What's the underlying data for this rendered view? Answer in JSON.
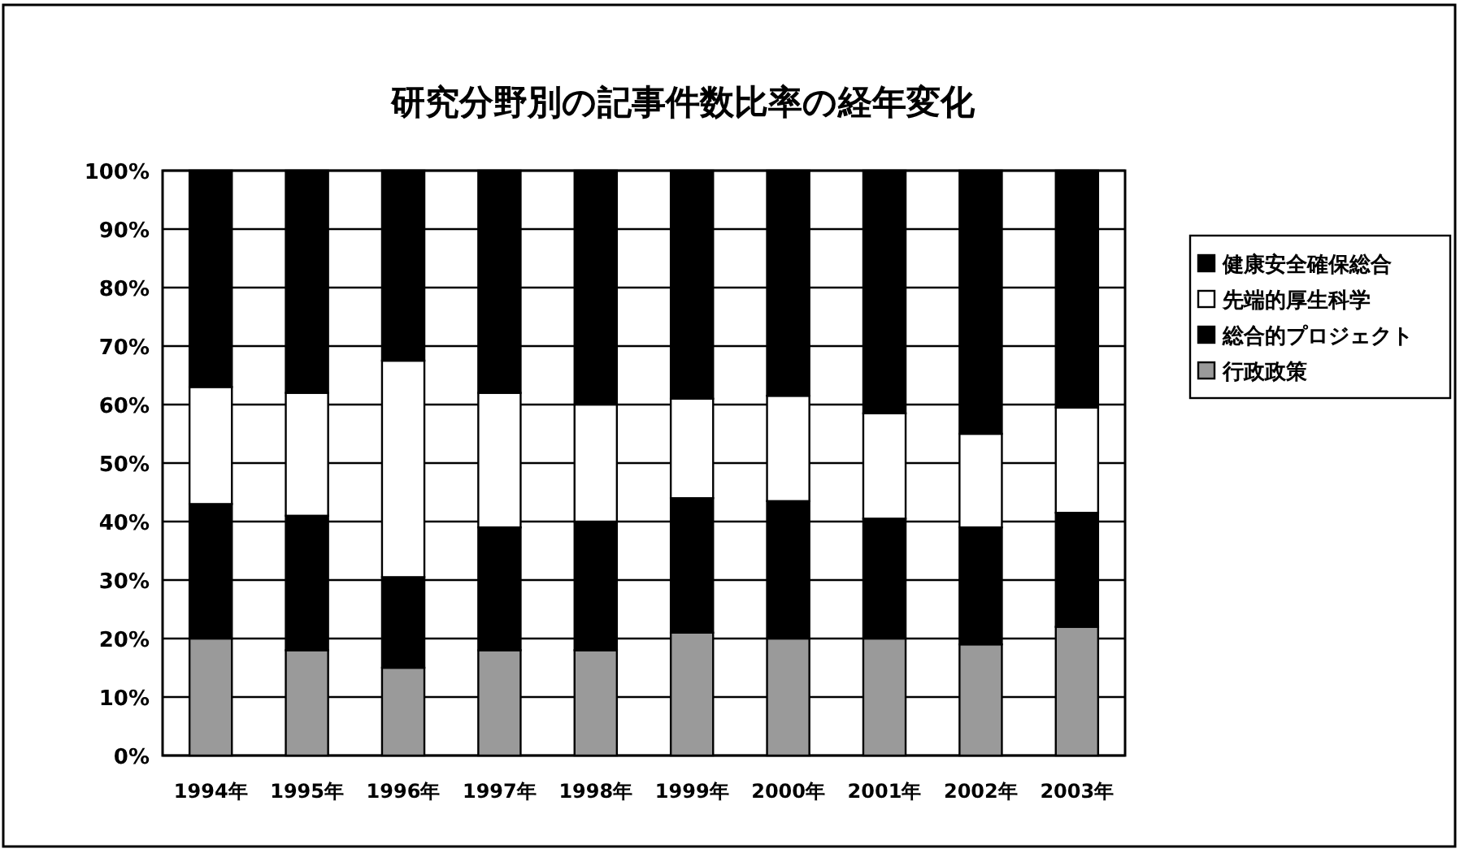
{
  "chart_data": {
    "type": "bar",
    "title": "研究分野別の記事件数比率の経年変化",
    "stacked": true,
    "grid": "y",
    "legend": "right",
    "categories": [
      "1994年",
      "1995年",
      "1996年",
      "1997年",
      "1998年",
      "1999年",
      "2000年",
      "2001年",
      "2002年",
      "2003年"
    ],
    "ylim": [
      0,
      100
    ],
    "yticks": [
      {
        "value": 0,
        "label": "0%"
      },
      {
        "value": 10,
        "label": "10%"
      },
      {
        "value": 20,
        "label": "20%"
      },
      {
        "value": 30,
        "label": "30%"
      },
      {
        "value": 40,
        "label": "40%"
      },
      {
        "value": 50,
        "label": "50%"
      },
      {
        "value": 60,
        "label": "60%"
      },
      {
        "value": 70,
        "label": "70%"
      },
      {
        "value": 80,
        "label": "80%"
      },
      {
        "value": 90,
        "label": "90%"
      },
      {
        "value": 100,
        "label": "100%"
      }
    ],
    "series": [
      {
        "name": "行政政策",
        "color": "#9a9a9a",
        "values": [
          20,
          18,
          15,
          18,
          18,
          21,
          20,
          20,
          19,
          22
        ]
      },
      {
        "name": "総合的プロジェクト",
        "color": "#000000",
        "values": [
          23,
          23,
          15.5,
          21,
          22,
          23,
          23.5,
          20.5,
          20,
          19.5
        ]
      },
      {
        "name": "先端的厚生科学",
        "color": "#ffffff",
        "values": [
          20,
          21,
          37,
          23,
          20,
          17,
          18,
          18,
          16,
          18
        ]
      },
      {
        "name": "健康安全確保総合",
        "color": "#000000",
        "values": [
          37,
          38,
          32.5,
          38,
          40,
          39,
          38.5,
          41.5,
          45,
          40.5
        ]
      }
    ]
  }
}
